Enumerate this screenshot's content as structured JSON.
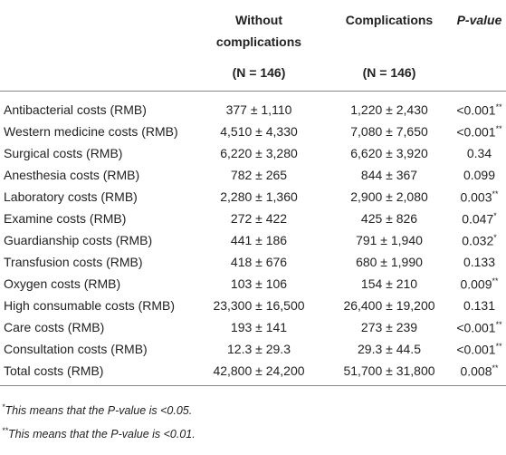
{
  "header": {
    "columns": [
      "Without complications",
      "Complications",
      "P-value"
    ],
    "n": [
      "(N = 146)",
      "(N = 146)"
    ]
  },
  "table": {
    "rows": [
      {
        "label": "Antibacterial costs (RMB)",
        "without": "377 ± 1,110",
        "with": "1,220 ± 2,430",
        "p": "<0.001",
        "sig": "**"
      },
      {
        "label": "Western medicine costs (RMB)",
        "without": "4,510 ± 4,330",
        "with": "7,080 ± 7,650",
        "p": "<0.001",
        "sig": "**"
      },
      {
        "label": "Surgical costs (RMB)",
        "without": "6,220 ± 3,280",
        "with": "6,620 ± 3,920",
        "p": "0.34"
      },
      {
        "label": "Anesthesia costs (RMB)",
        "without": "782 ± 265",
        "with": "844 ± 367",
        "p": "0.099"
      },
      {
        "label": "Laboratory costs (RMB)",
        "without": "2,280 ± 1,360",
        "with": "2,900 ± 2,080",
        "p": "0.003",
        "sig": "**"
      },
      {
        "label": "Examine costs (RMB)",
        "without": "272 ± 422",
        "with": "425 ± 826",
        "p": "0.047",
        "sig": "*"
      },
      {
        "label": "Guardianship costs (RMB)",
        "without": "441 ± 186",
        "with": "791 ± 1,940",
        "p": "0.032",
        "sig": "*"
      },
      {
        "label": "Transfusion costs (RMB)",
        "without": "418 ± 676",
        "with": "680 ± 1,990",
        "p": "0.133"
      },
      {
        "label": "Oxygen costs (RMB)",
        "without": "103 ± 106",
        "with": "154 ± 210",
        "p": "0.009",
        "sig": "**"
      },
      {
        "label": "High consumable costs (RMB)",
        "without": "23,300 ± 16,500",
        "with": "26,400 ± 19,200",
        "p": "0.131"
      },
      {
        "label": "Care costs (RMB)",
        "without": "193 ± 141",
        "with": "273 ± 239",
        "p": "<0.001",
        "sig": "**"
      },
      {
        "label": "Consultation costs (RMB)",
        "without": "12.3 ± 29.3",
        "with": "29.3 ± 44.5",
        "p": "<0.001",
        "sig": "**"
      },
      {
        "label": "Total costs (RMB)",
        "without": "42,800 ± 24,200",
        "with": "51,700 ± 31,800",
        "p": "0.008",
        "sig": "**"
      }
    ]
  },
  "footnotes": [
    {
      "mark": "*",
      "text": "This means that the P-value is <0.05."
    },
    {
      "mark": "**",
      "text": "This means that the P-value is <0.01."
    }
  ]
}
